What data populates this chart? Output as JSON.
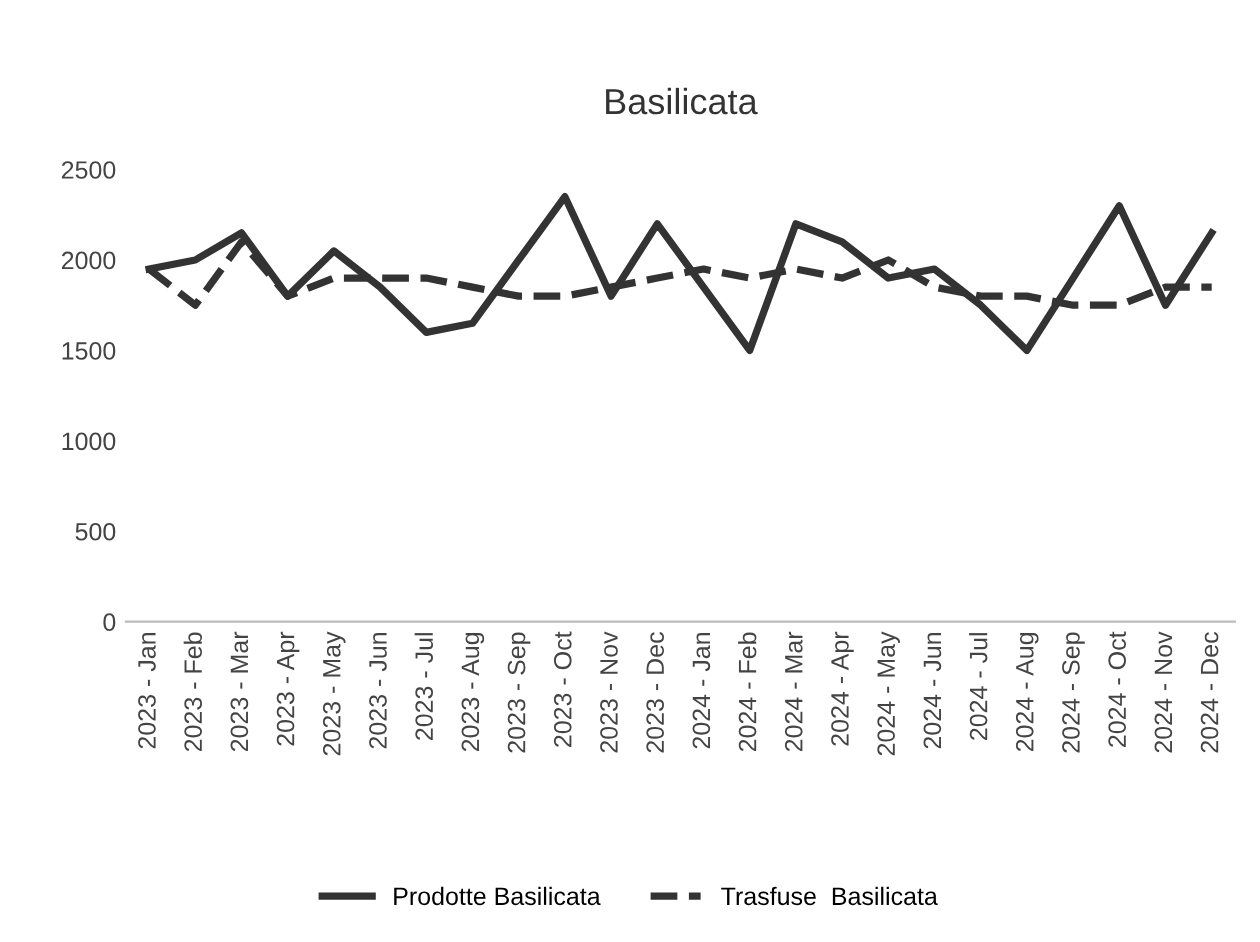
{
  "chart_data": {
    "type": "line",
    "title": "Basilicata",
    "categories": [
      "2023 - Jan",
      "2023 - Feb",
      "2023 - Mar",
      "2023 - Apr",
      "2023 - May",
      "2023 - Jun",
      "2023 - Jul",
      "2023 - Aug",
      "2023 - Sep",
      "2023 - Oct",
      "2023 - Nov",
      "2023 - Dec",
      "2024 - Jan",
      "2024 - Feb",
      "2024 - Mar",
      "2024 - Apr",
      "2024 - May",
      "2024 - Jun",
      "2024 - Jul",
      "2024 - Aug",
      "2024 - Sep",
      "2024 - Oct",
      "2024 - Nov",
      "2024 - Dec"
    ],
    "series": [
      {
        "name": "Prodotte Basilicata",
        "color": "#333333",
        "line_style": "solid",
        "values": [
          1950,
          2000,
          2150,
          1800,
          2050,
          1850,
          1600,
          1650,
          2000,
          2350,
          1800,
          2200,
          1850,
          1500,
          2200,
          2100,
          1900,
          1950,
          1750,
          1500,
          1900,
          2300,
          1750,
          2150
        ]
      },
      {
        "name": "Trasfuse  Basilicata",
        "color": "#333333",
        "line_style": "dashed",
        "values": [
          1950,
          1750,
          2100,
          1800,
          1900,
          1900,
          1900,
          1850,
          1800,
          1800,
          1850,
          1900,
          1950,
          1900,
          1950,
          1900,
          2000,
          1850,
          1800,
          1800,
          1750,
          1750,
          1850,
          1850
        ]
      }
    ],
    "ylim": [
      0,
      2500
    ],
    "yticks": [
      0,
      500,
      1000,
      1500,
      2000,
      2500
    ],
    "grid": false,
    "legend": "bottom",
    "marker": "none"
  }
}
